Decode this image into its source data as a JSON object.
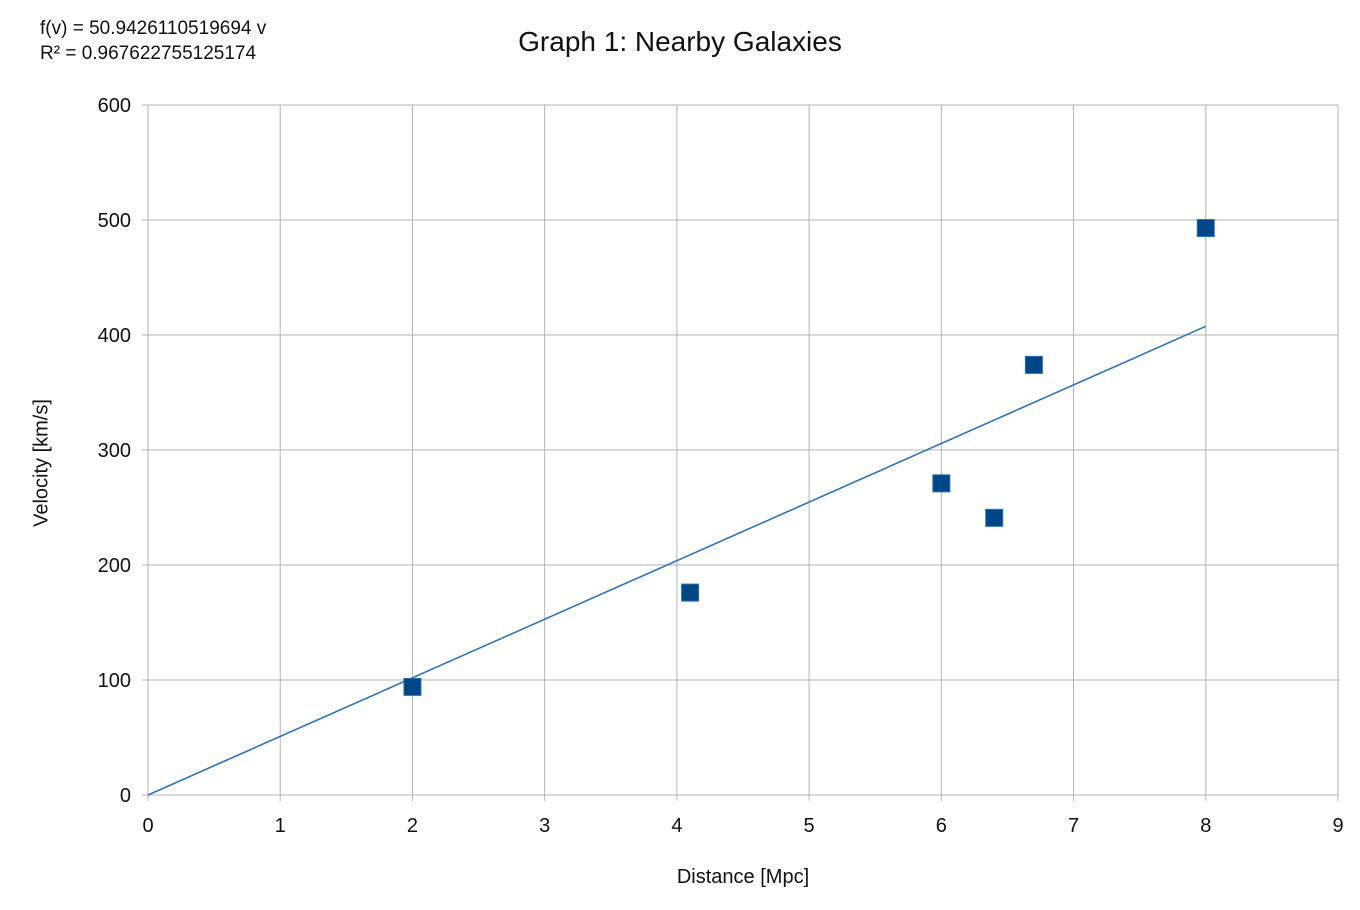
{
  "chart_data": {
    "type": "scatter",
    "title": "Graph 1: Nearby Galaxies",
    "xlabel": "Distance [Mpc]",
    "ylabel": "Velocity [km/s]",
    "xlim": [
      0,
      9
    ],
    "ylim": [
      0,
      600
    ],
    "xticks": [
      "0",
      "1",
      "2",
      "3",
      "4",
      "5",
      "6",
      "7",
      "8",
      "9"
    ],
    "yticks": [
      "0",
      "100",
      "200",
      "300",
      "400",
      "500",
      "600"
    ],
    "grid": true,
    "series": [
      {
        "marker": "square",
        "color": "#004586",
        "x": [
          2,
          4.1,
          6,
          6.4,
          6.7,
          8
        ],
        "y": [
          94,
          176,
          271,
          241,
          374,
          493
        ]
      }
    ],
    "trendline": {
      "type": "linear-through-origin",
      "slope": 50.9426110519694,
      "x_range": [
        0,
        8
      ],
      "color": "#2e75b6",
      "equation": "f(v) = 50.9426110519694 v",
      "r_squared": "R² = 0.967622755125174"
    }
  }
}
